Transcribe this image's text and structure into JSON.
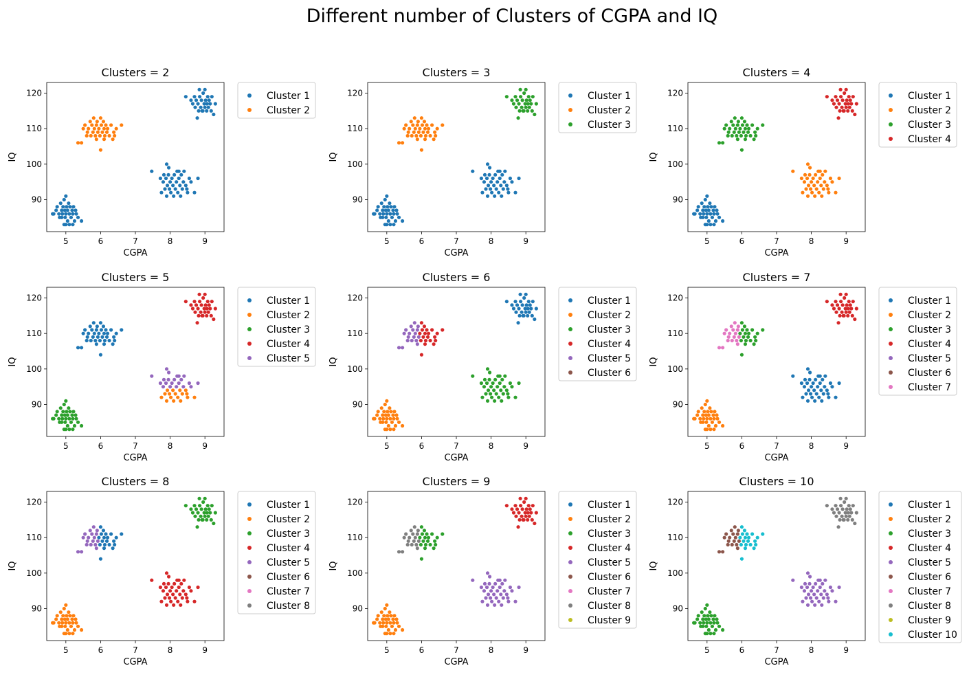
{
  "figure": {
    "title": "Different number of Clusters of CGPA and IQ",
    "colors": [
      "#1f77b4",
      "#ff7f0e",
      "#2ca02c",
      "#d62728",
      "#9467bd",
      "#8c564b",
      "#e377c2",
      "#7f7f7f",
      "#bcbd22",
      "#17becf"
    ]
  },
  "chart_data": [
    {
      "type": "scatter",
      "title": "Clusters = 2",
      "xlabel": "CGPA",
      "ylabel": "IQ",
      "xlim": [
        4.45,
        9.55
      ],
      "ylim": [
        81,
        123
      ],
      "xticks": [
        5,
        6,
        7,
        8,
        9
      ],
      "yticks": [
        90,
        100,
        110,
        120
      ],
      "legend_position": "outside-right",
      "legend": [
        "Cluster 1",
        "Cluster 2"
      ],
      "assign": [
        0,
        1,
        0,
        0
      ],
      "split": null
    },
    {
      "type": "scatter",
      "title": "Clusters = 3",
      "xlabel": "CGPA",
      "ylabel": "IQ",
      "xlim": [
        4.45,
        9.55
      ],
      "ylim": [
        81,
        123
      ],
      "xticks": [
        5,
        6,
        7,
        8,
        9
      ],
      "yticks": [
        90,
        100,
        110,
        120
      ],
      "legend_position": "outside-right",
      "legend": [
        "Cluster 1",
        "Cluster 2",
        "Cluster 3"
      ],
      "assign": [
        0,
        1,
        0,
        2
      ],
      "split": null
    },
    {
      "type": "scatter",
      "title": "Clusters = 4",
      "xlabel": "CGPA",
      "ylabel": "IQ",
      "xlim": [
        4.45,
        9.55
      ],
      "ylim": [
        81,
        123
      ],
      "xticks": [
        5,
        6,
        7,
        8,
        9
      ],
      "yticks": [
        90,
        100,
        110,
        120
      ],
      "legend_position": "outside-right",
      "legend": [
        "Cluster 1",
        "Cluster 2",
        "Cluster 3",
        "Cluster 4"
      ],
      "assign": [
        0,
        2,
        1,
        3
      ],
      "split": null
    },
    {
      "type": "scatter",
      "title": "Clusters = 5",
      "xlabel": "CGPA",
      "ylabel": "IQ",
      "xlim": [
        4.45,
        9.55
      ],
      "ylim": [
        81,
        123
      ],
      "xticks": [
        5,
        6,
        7,
        8,
        9
      ],
      "yticks": [
        90,
        100,
        110,
        120
      ],
      "legend_position": "outside-right",
      "legend": [
        "Cluster 1",
        "Cluster 2",
        "Cluster 3",
        "Cluster 4",
        "Cluster 5"
      ],
      "assign": [
        2,
        0,
        [
          1,
          4
        ],
        3
      ],
      "split": {
        "group": 2,
        "axis": "y",
        "at": 95
      }
    },
    {
      "type": "scatter",
      "title": "Clusters = 6",
      "xlabel": "CGPA",
      "ylabel": "IQ",
      "xlim": [
        4.45,
        9.55
      ],
      "ylim": [
        81,
        123
      ],
      "xticks": [
        5,
        6,
        7,
        8,
        9
      ],
      "yticks": [
        90,
        100,
        110,
        120
      ],
      "legend_position": "outside-right",
      "legend": [
        "Cluster 1",
        "Cluster 2",
        "Cluster 3",
        "Cluster 4",
        "Cluster 5",
        "Cluster 6"
      ],
      "assign": [
        1,
        [
          4,
          3
        ],
        [
          5,
          2
        ],
        0
      ],
      "split": {
        "group": 1,
        "axis": "x",
        "at": 5.95
      }
    },
    {
      "type": "scatter",
      "title": "Clusters = 7",
      "xlabel": "CGPA",
      "ylabel": "IQ",
      "xlim": [
        4.45,
        9.55
      ],
      "ylim": [
        81,
        123
      ],
      "xticks": [
        5,
        6,
        7,
        8,
        9
      ],
      "yticks": [
        90,
        100,
        110,
        120
      ],
      "legend_position": "outside-right",
      "legend": [
        "Cluster 1",
        "Cluster 2",
        "Cluster 3",
        "Cluster 4",
        "Cluster 5",
        "Cluster 6",
        "Cluster 7"
      ],
      "assign": [
        [
          1,
          5
        ],
        [
          6,
          2
        ],
        [
          4,
          0
        ],
        3
      ],
      "split": {
        "group": 1,
        "axis": "x",
        "at": 5.95
      }
    },
    {
      "type": "scatter",
      "title": "Clusters = 8",
      "xlabel": "CGPA",
      "ylabel": "IQ",
      "xlim": [
        4.45,
        9.55
      ],
      "ylim": [
        81,
        123
      ],
      "xticks": [
        5,
        6,
        7,
        8,
        9
      ],
      "yticks": [
        90,
        100,
        110,
        120
      ],
      "legend_position": "outside-right",
      "legend": [
        "Cluster 1",
        "Cluster 2",
        "Cluster 3",
        "Cluster 4",
        "Cluster 5",
        "Cluster 6",
        "Cluster 7",
        "Cluster 8"
      ],
      "assign": [
        [
          1,
          5
        ],
        [
          4,
          0
        ],
        [
          7,
          3
        ],
        2
      ],
      "split": {
        "group": 1,
        "axis": "x",
        "at": 5.95
      }
    },
    {
      "type": "scatter",
      "title": "Clusters = 9",
      "xlabel": "CGPA",
      "ylabel": "IQ",
      "xlim": [
        4.45,
        9.55
      ],
      "ylim": [
        81,
        123
      ],
      "xticks": [
        5,
        6,
        7,
        8,
        9
      ],
      "yticks": [
        90,
        100,
        110,
        120
      ],
      "legend_position": "outside-right",
      "legend": [
        "Cluster 1",
        "Cluster 2",
        "Cluster 3",
        "Cluster 4",
        "Cluster 5",
        "Cluster 6",
        "Cluster 7",
        "Cluster 8",
        "Cluster 9"
      ],
      "assign": [
        [
          1,
          5
        ],
        [
          7,
          2
        ],
        [
          0,
          4
        ],
        3
      ],
      "split": {
        "group": 1,
        "axis": "x",
        "at": 5.95
      }
    },
    {
      "type": "scatter",
      "title": "Clusters = 10",
      "xlabel": "CGPA",
      "ylabel": "IQ",
      "xlim": [
        4.45,
        9.55
      ],
      "ylim": [
        81,
        123
      ],
      "xticks": [
        5,
        6,
        7,
        8,
        9
      ],
      "yticks": [
        90,
        100,
        110,
        120
      ],
      "legend_position": "outside-right",
      "legend": [
        "Cluster 1",
        "Cluster 2",
        "Cluster 3",
        "Cluster 4",
        "Cluster 5",
        "Cluster 6",
        "Cluster 7",
        "Cluster 8",
        "Cluster 9",
        "Cluster 10"
      ],
      "assign": [
        [
          2,
          8
        ],
        [
          5,
          9
        ],
        [
          6,
          4
        ],
        [
          1,
          7
        ]
      ],
      "split": {
        "group": 1,
        "axis": "x",
        "at": 5.95
      }
    }
  ],
  "groups": [
    {
      "name": "low-cgpa-low-iq",
      "points": [
        [
          4.62,
          86
        ],
        [
          4.65,
          86
        ],
        [
          4.72,
          87
        ],
        [
          4.75,
          88
        ],
        [
          4.8,
          86
        ],
        [
          4.82,
          85
        ],
        [
          4.85,
          89
        ],
        [
          4.88,
          87
        ],
        [
          4.9,
          86
        ],
        [
          4.92,
          88
        ],
        [
          4.95,
          90
        ],
        [
          4.97,
          87
        ],
        [
          4.98,
          85
        ],
        [
          5.0,
          91
        ],
        [
          5.0,
          86
        ],
        [
          5.02,
          88
        ],
        [
          5.05,
          87
        ],
        [
          5.05,
          84
        ],
        [
          5.08,
          89
        ],
        [
          5.1,
          86
        ],
        [
          5.12,
          88
        ],
        [
          5.15,
          85
        ],
        [
          5.18,
          87
        ],
        [
          5.2,
          86
        ],
        [
          5.22,
          88
        ],
        [
          5.25,
          84
        ],
        [
          5.28,
          87
        ],
        [
          5.3,
          86
        ],
        [
          5.35,
          85
        ],
        [
          5.45,
          84
        ],
        [
          5.0,
          83
        ],
        [
          5.1,
          83
        ],
        [
          5.2,
          83
        ],
        [
          4.88,
          85
        ],
        [
          4.95,
          83
        ]
      ]
    },
    {
      "name": "mid-cgpa-high-iq",
      "points": [
        [
          5.35,
          106
        ],
        [
          5.45,
          106
        ],
        [
          5.5,
          110
        ],
        [
          5.55,
          111
        ],
        [
          5.6,
          108
        ],
        [
          5.62,
          109
        ],
        [
          5.65,
          110
        ],
        [
          5.7,
          112
        ],
        [
          5.72,
          108
        ],
        [
          5.75,
          111
        ],
        [
          5.78,
          109
        ],
        [
          5.8,
          113
        ],
        [
          5.82,
          110
        ],
        [
          5.85,
          108
        ],
        [
          5.88,
          111
        ],
        [
          5.9,
          112
        ],
        [
          5.92,
          109
        ],
        [
          5.95,
          110
        ],
        [
          5.98,
          108
        ],
        [
          6.0,
          113
        ],
        [
          6.0,
          104
        ],
        [
          6.02,
          111
        ],
        [
          6.05,
          109
        ],
        [
          6.08,
          112
        ],
        [
          6.1,
          110
        ],
        [
          6.12,
          108
        ],
        [
          6.15,
          111
        ],
        [
          6.18,
          109
        ],
        [
          6.2,
          110
        ],
        [
          6.25,
          108
        ],
        [
          6.3,
          111
        ],
        [
          6.35,
          107
        ],
        [
          6.4,
          108
        ],
        [
          6.45,
          110
        ],
        [
          6.6,
          111
        ],
        [
          5.88,
          107
        ],
        [
          6.1,
          107
        ],
        [
          6.38,
          109
        ]
      ]
    },
    {
      "name": "high-cgpa-mid-iq",
      "points": [
        [
          7.47,
          98
        ],
        [
          7.72,
          96
        ],
        [
          7.75,
          92
        ],
        [
          7.8,
          95
        ],
        [
          7.82,
          97
        ],
        [
          7.85,
          93
        ],
        [
          7.88,
          96
        ],
        [
          7.9,
          91
        ],
        [
          7.9,
          100
        ],
        [
          7.92,
          94
        ],
        [
          7.95,
          97
        ],
        [
          7.98,
          93
        ],
        [
          8.0,
          95
        ],
        [
          8.02,
          92
        ],
        [
          8.05,
          96
        ],
        [
          8.08,
          94
        ],
        [
          8.1,
          91
        ],
        [
          8.12,
          97
        ],
        [
          8.15,
          93
        ],
        [
          8.18,
          95
        ],
        [
          8.2,
          98
        ],
        [
          8.22,
          92
        ],
        [
          8.25,
          96
        ],
        [
          8.28,
          94
        ],
        [
          8.3,
          91
        ],
        [
          8.32,
          97
        ],
        [
          8.35,
          93
        ],
        [
          8.38,
          95
        ],
        [
          8.4,
          98
        ],
        [
          8.45,
          94
        ],
        [
          8.5,
          92
        ],
        [
          8.55,
          96
        ],
        [
          8.6,
          95
        ],
        [
          8.7,
          92
        ],
        [
          8.8,
          96
        ],
        [
          7.96,
          99
        ],
        [
          8.25,
          98
        ],
        [
          8.48,
          93
        ]
      ]
    },
    {
      "name": "very-high-cgpa-very-high-iq",
      "points": [
        [
          8.45,
          119
        ],
        [
          8.6,
          118
        ],
        [
          8.65,
          117
        ],
        [
          8.7,
          119
        ],
        [
          8.72,
          116
        ],
        [
          8.75,
          118
        ],
        [
          8.78,
          113
        ],
        [
          8.8,
          117
        ],
        [
          8.82,
          115
        ],
        [
          8.85,
          119
        ],
        [
          8.88,
          116
        ],
        [
          8.9,
          118
        ],
        [
          8.92,
          115
        ],
        [
          8.95,
          120
        ],
        [
          8.98,
          117
        ],
        [
          9.0,
          121
        ],
        [
          9.0,
          116
        ],
        [
          9.02,
          118
        ],
        [
          9.05,
          115
        ],
        [
          9.08,
          119
        ],
        [
          9.1,
          116
        ],
        [
          9.12,
          118
        ],
        [
          9.15,
          117
        ],
        [
          9.18,
          115
        ],
        [
          9.2,
          119
        ],
        [
          9.25,
          114
        ],
        [
          9.3,
          117
        ],
        [
          8.84,
          121
        ],
        [
          9.06,
          117
        ],
        [
          8.94,
          115
        ]
      ]
    }
  ]
}
